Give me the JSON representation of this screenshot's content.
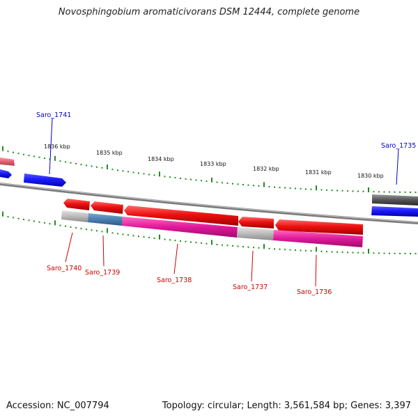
{
  "title": "Novosphingobium aromaticivorans DSM 12444, complete genome",
  "accession_text": "Accession: NC_007794",
  "topology_text": "Topology: circular; Length: 3,561,584 bp; Genes: 3,397",
  "colors": {
    "backbone": "#808080",
    "kbp_ticks": "#1f8c1f",
    "forward_gene": "#1a1aff",
    "reverse_gene": "#ee1111",
    "annotation_magenta": "#e0189a",
    "annotation_steel": "#4a7fb0",
    "annotation_gray": "#b8b8b8",
    "label_blue": "#0000cc",
    "label_red": "#cc0000"
  },
  "kbp_labels": [
    "1836 kbp",
    "1835 kbp",
    "1834 kbp",
    "1833 kbp",
    "1832 kbp",
    "1831 kbp",
    "1830 kbp"
  ],
  "gene_labels": {
    "forward": [
      "Saro_1741",
      "Saro_1735"
    ],
    "reverse": [
      "Saro_1740",
      "Saro_1739",
      "Saro_1738",
      "Saro_1737",
      "Saro_1736"
    ]
  }
}
